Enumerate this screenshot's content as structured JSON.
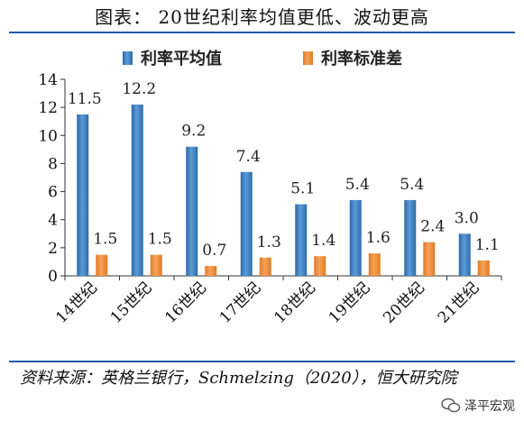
{
  "title": "图表： 20世纪利率均值更低、波动更高",
  "source": "资料来源：英格兰银行，Schmelzing（2020），恒大研究院",
  "watermark": "泽平宏观",
  "colors": {
    "blue": "#3d80c3",
    "orange": "#ee8a35",
    "rule": "#1f5aa6"
  },
  "chart_data": {
    "type": "bar",
    "categories": [
      "14世纪",
      "15世纪",
      "16世纪",
      "17世纪",
      "18世纪",
      "19世纪",
      "20世纪",
      "21世纪"
    ],
    "series": [
      {
        "name": "利率平均值",
        "values": [
          11.5,
          12.2,
          9.2,
          7.4,
          5.1,
          5.4,
          5.4,
          3.0
        ],
        "labels": [
          "11.5",
          "12.2",
          "9.2",
          "7.4",
          "5.1",
          "5.4",
          "5.4",
          "3.0"
        ]
      },
      {
        "name": "利率标准差",
        "values": [
          1.5,
          1.5,
          0.7,
          1.3,
          1.4,
          1.6,
          2.4,
          1.1
        ],
        "labels": [
          "1.5",
          "1.5",
          "0.7",
          "1.3",
          "1.4",
          "1.6",
          "2.4",
          "1.1"
        ]
      }
    ],
    "ylim": [
      0,
      14
    ],
    "yticks": [
      "0",
      "2",
      "4",
      "6",
      "8",
      "10",
      "12",
      "14"
    ],
    "legend_position": "top"
  }
}
